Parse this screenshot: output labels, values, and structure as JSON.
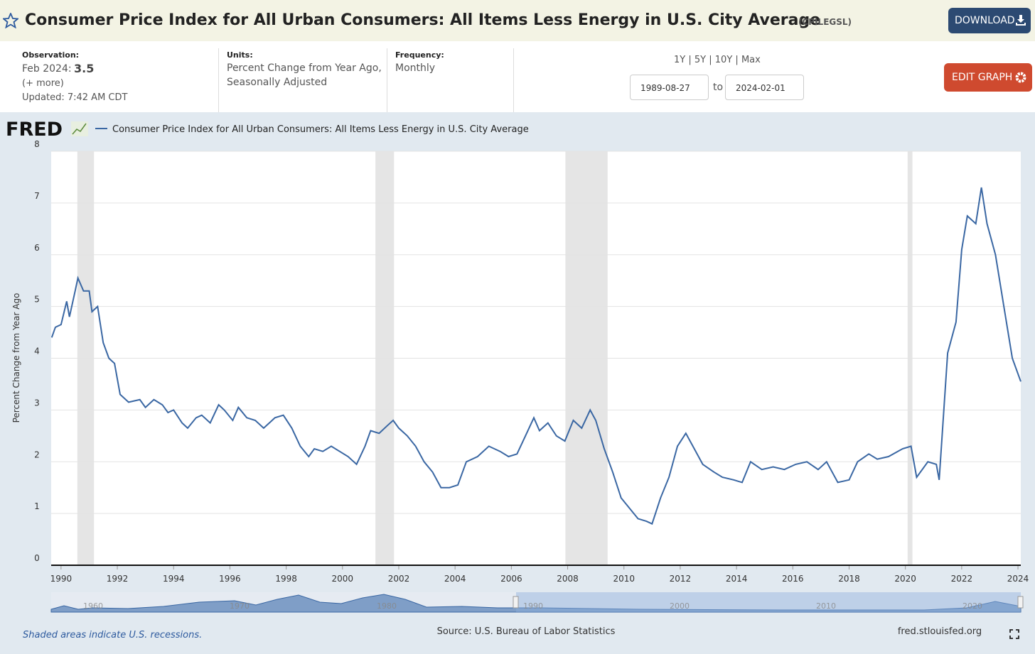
{
  "header": {
    "title": "Consumer Price Index for All Urban Consumers: All Items Less Energy in U.S. City Average",
    "series_id": "(CPILEGSL)",
    "download": "DOWNLOAD"
  },
  "info": {
    "observation_label": "Observation:",
    "observation_date": "Feb 2024:",
    "observation_value": "3.5",
    "more": "(+ more)",
    "updated": "Updated: 7:42 AM CDT",
    "units_label": "Units:",
    "units_lines": [
      "Percent Change from Year Ago,",
      "Seasonally Adjusted"
    ],
    "frequency_label": "Frequency:",
    "frequency": "Monthly",
    "ranges": [
      "1Y",
      "5Y",
      "10Y",
      "Max"
    ],
    "range_separator": "|",
    "start_date": "1989-08-27",
    "to": "to",
    "end_date": "2024-02-01",
    "edit": "EDIT GRAPH"
  },
  "chart_data": {
    "type": "line",
    "logo": "FRED",
    "y_label": "Percent Change from Year Ago",
    "x": [
      1989.67,
      1989.8,
      1990.0,
      1990.2,
      1990.3,
      1990.5,
      1990.6,
      1990.8,
      1991.0,
      1991.1,
      1991.3,
      1991.5,
      1991.7,
      1991.9,
      1992.1,
      1992.4,
      1992.8,
      1993.0,
      1993.3,
      1993.6,
      1993.8,
      1994.0,
      1994.3,
      1994.5,
      1994.8,
      1995.0,
      1995.3,
      1995.6,
      1995.8,
      1996.1,
      1996.3,
      1996.6,
      1996.9,
      1997.2,
      1997.6,
      1997.9,
      1998.2,
      1998.5,
      1998.8,
      1999.0,
      1999.3,
      1999.6,
      1999.9,
      2000.2,
      2000.5,
      2000.8,
      2001.0,
      2001.3,
      2001.6,
      2001.8,
      2002.0,
      2002.3,
      2002.6,
      2002.9,
      2003.2,
      2003.5,
      2003.8,
      2004.1,
      2004.4,
      2004.8,
      2005.2,
      2005.6,
      2005.9,
      2006.2,
      2006.5,
      2006.8,
      2007.0,
      2007.3,
      2007.6,
      2007.9,
      2008.2,
      2008.5,
      2008.8,
      2009.0,
      2009.3,
      2009.6,
      2009.9,
      2010.2,
      2010.5,
      2010.8,
      2011.0,
      2011.3,
      2011.6,
      2011.9,
      2012.2,
      2012.5,
      2012.8,
      2013.2,
      2013.5,
      2013.9,
      2014.2,
      2014.5,
      2014.9,
      2015.3,
      2015.7,
      2016.1,
      2016.5,
      2016.9,
      2017.2,
      2017.6,
      2018.0,
      2018.3,
      2018.7,
      2019.0,
      2019.4,
      2019.9,
      2020.2,
      2020.4,
      2020.8,
      2021.1,
      2021.2,
      2021.5,
      2021.8,
      2022.0,
      2022.2,
      2022.5,
      2022.7,
      2022.9,
      2023.2,
      2023.5,
      2023.8,
      2024.1
    ],
    "series": [
      {
        "name": "Consumer Price Index for All Urban Consumers: All Items Less Energy in U.S. City Average",
        "color": "#3a67a3",
        "values": [
          4.4,
          4.6,
          4.65,
          5.1,
          4.8,
          5.3,
          5.55,
          5.3,
          5.3,
          4.9,
          5.0,
          4.3,
          4.0,
          3.9,
          3.3,
          3.15,
          3.2,
          3.05,
          3.2,
          3.1,
          2.95,
          3.0,
          2.75,
          2.65,
          2.85,
          2.9,
          2.75,
          3.1,
          3.0,
          2.8,
          3.05,
          2.85,
          2.8,
          2.65,
          2.85,
          2.9,
          2.65,
          2.3,
          2.1,
          2.25,
          2.2,
          2.3,
          2.2,
          2.1,
          1.95,
          2.3,
          2.6,
          2.55,
          2.7,
          2.8,
          2.65,
          2.5,
          2.3,
          2.0,
          1.8,
          1.5,
          1.5,
          1.55,
          2.0,
          2.1,
          2.3,
          2.2,
          2.1,
          2.15,
          2.5,
          2.85,
          2.6,
          2.75,
          2.5,
          2.4,
          2.8,
          2.65,
          3.0,
          2.8,
          2.25,
          1.8,
          1.3,
          1.1,
          0.9,
          0.85,
          0.8,
          1.3,
          1.7,
          2.3,
          2.55,
          2.25,
          1.95,
          1.8,
          1.7,
          1.65,
          1.6,
          2.0,
          1.85,
          1.9,
          1.85,
          1.95,
          2.0,
          1.85,
          2.0,
          1.6,
          1.65,
          2.0,
          2.15,
          2.05,
          2.1,
          2.25,
          2.3,
          1.7,
          2.0,
          1.95,
          1.65,
          4.1,
          4.7,
          6.1,
          6.75,
          6.6,
          7.3,
          6.6,
          6.0,
          5.0,
          4.0,
          3.55
        ]
      }
    ],
    "recessions": [
      [
        1990.58,
        1991.17
      ],
      [
        2001.17,
        2001.83
      ],
      [
        2007.92,
        2009.42
      ],
      [
        2020.08,
        2020.25
      ]
    ],
    "xlim": [
      1989.65,
      2024.1
    ],
    "xticks": [
      1990,
      1992,
      1994,
      1996,
      1998,
      2000,
      2002,
      2004,
      2006,
      2008,
      2010,
      2012,
      2014,
      2016,
      2018,
      2020,
      2022,
      2024
    ],
    "ylim": [
      0,
      8
    ],
    "yticks": [
      0,
      1,
      2,
      3,
      4,
      5,
      6,
      7,
      8
    ],
    "grid": true
  },
  "navigator": {
    "labels": [
      "1960",
      "1970",
      "1980",
      "1990",
      "2000",
      "2010",
      "2020"
    ]
  },
  "footer": {
    "note": "Shaded areas indicate U.S. recessions.",
    "source": "Source: U.S. Bureau of Labor Statistics",
    "site": "fred.stlouisfed.org"
  }
}
